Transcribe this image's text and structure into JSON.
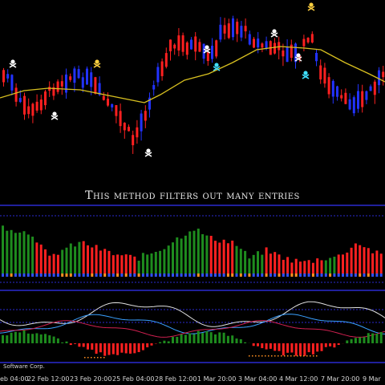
{
  "caption": "This method filters out many entries",
  "copyright": "Software Corp.",
  "xaxis_labels": [
    "eb 04:00",
    "22 Feb 12:00",
    "23 Feb 20:00",
    "25 Feb 04:00",
    "28 Feb 12:00",
    "1 Mar 20:00",
    "3 Mar 04:00",
    "4 Mar 12:00",
    "7 Mar 20:00",
    "9 Mar"
  ],
  "colors": {
    "background": "#000000",
    "bull_candle": "#2233ff",
    "bear_candle": "#ff2020",
    "moving_average": "#d8c020",
    "hist_green": "#1e8c1e",
    "hist_red": "#ff2020",
    "separator": "#2a2ad0",
    "signal_white": "#ffffff",
    "signal_cyan": "#40e0ff",
    "signal_yellow": "#ffd040",
    "dot_blue": "#3050ff",
    "dot_orange": "#ff9020"
  },
  "icons": [
    "buy-signal-icon",
    "sell-signal-icon",
    "alert-signal-icon"
  ]
}
